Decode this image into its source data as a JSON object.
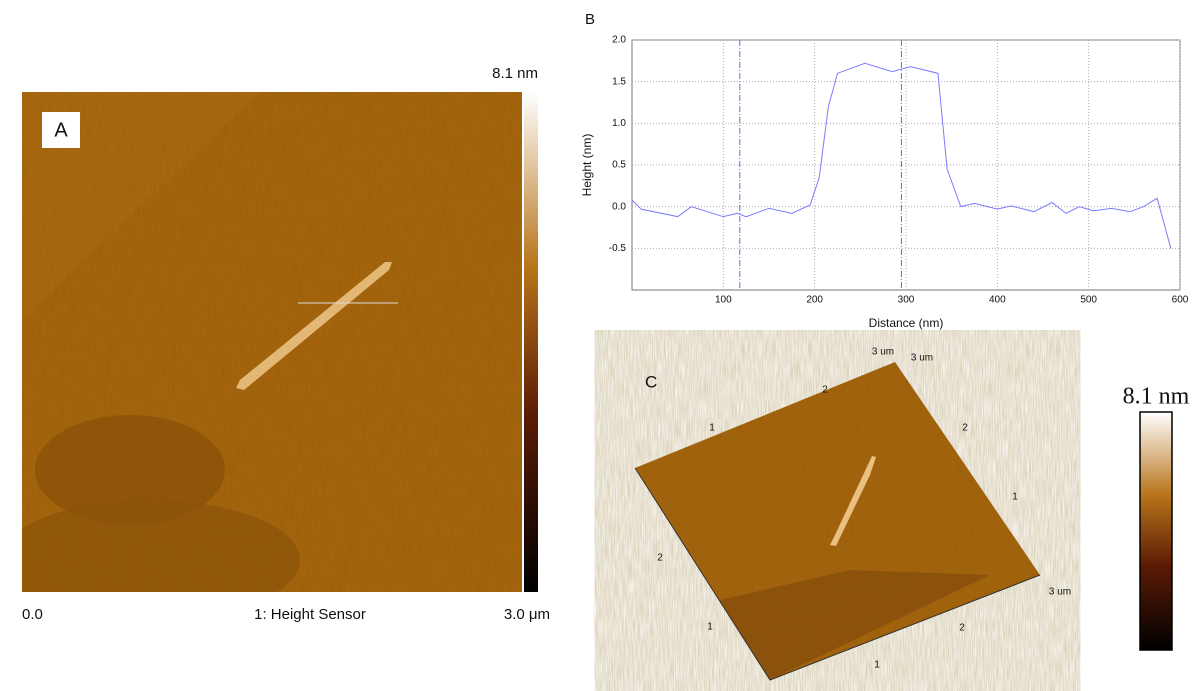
{
  "panel_a": {
    "label": "A",
    "scale_max": "8.1 nm",
    "x_start": "0.0",
    "channel": "1: Height Sensor",
    "x_end": "3.0 μm"
  },
  "chart_data": {
    "type": "line",
    "label": "B",
    "x_label": "Distance (nm)",
    "y_label": "Height (nm)",
    "xlim": [
      0,
      600
    ],
    "ylim": [
      -1,
      2
    ],
    "xticks": [
      100,
      200,
      300,
      400,
      500,
      600
    ],
    "yticks": [
      {
        "value": 2,
        "label": "2.0"
      },
      1.5,
      {
        "value": 1,
        "label": "1.0"
      },
      0.5,
      {
        "value": 0,
        "label": "0.0"
      },
      -0.5
    ],
    "grid": true,
    "x": [
      0,
      10,
      50,
      65,
      100,
      115,
      125,
      150,
      175,
      195,
      205,
      215,
      225,
      255,
      285,
      305,
      335,
      345,
      360,
      375,
      400,
      415,
      440,
      460,
      475,
      490,
      505,
      525,
      545,
      560,
      575,
      590
    ],
    "series": [
      {
        "color": "#7b7bff",
        "values": [
          0.08,
          -0.03,
          -0.12,
          0.0,
          -0.12,
          -0.08,
          -0.12,
          -0.02,
          -0.08,
          0.02,
          0.35,
          1.2,
          1.6,
          1.72,
          1.62,
          1.68,
          1.6,
          0.45,
          0.0,
          0.04,
          -0.03,
          0.01,
          -0.06,
          0.05,
          -0.08,
          0.0,
          -0.05,
          -0.02,
          -0.06,
          0.0,
          0.1,
          -0.5
        ]
      }
    ],
    "cursors": [
      118,
      295
    ],
    "cursor_color": "#5a6fe0"
  },
  "panel_c": {
    "label": "C",
    "axis_labels": [
      "1",
      "2",
      "3 um",
      "3 um",
      "2",
      "1",
      "3 um",
      "2",
      "1",
      "2",
      "1"
    ],
    "scale_max": "8.1 nm"
  }
}
